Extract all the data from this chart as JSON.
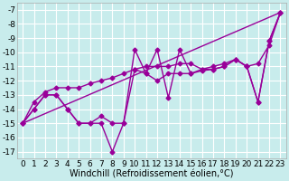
{
  "xlabel": "Windchill (Refroidissement éolien,°C)",
  "bg_color": "#c8ecec",
  "grid_color": "#ffffff",
  "line_color": "#990099",
  "xlim": [
    -0.5,
    23.5
  ],
  "ylim": [
    -17.5,
    -6.5
  ],
  "yticks": [
    -17,
    -16,
    -15,
    -14,
    -13,
    -12,
    -11,
    -10,
    -9,
    -8,
    -7
  ],
  "xticks": [
    0,
    1,
    2,
    3,
    4,
    5,
    6,
    7,
    8,
    9,
    10,
    11,
    12,
    13,
    14,
    15,
    16,
    17,
    18,
    19,
    20,
    21,
    22,
    23
  ],
  "series": [
    [
      0,
      -15,
      1,
      -14.0,
      2,
      -13.0,
      3,
      -13.0,
      4,
      -14.0,
      5,
      -15.0,
      6,
      -15.0,
      7,
      -15.0,
      8,
      -17.0,
      9,
      -15.0,
      10,
      -9.8,
      11,
      -11.5,
      12,
      -9.8,
      13,
      -13.2,
      14,
      -9.8,
      15,
      -11.5,
      16,
      -11.3,
      17,
      -11.2,
      18,
      -11.0,
      19,
      -10.5,
      20,
      -11.0,
      21,
      -13.5,
      22,
      -9.2,
      23,
      -7.2
    ],
    [
      0,
      -15,
      1,
      -14.0,
      2,
      -13.0,
      3,
      -13.0,
      4,
      -14.0,
      5,
      -15.0,
      6,
      -15.0,
      7,
      -14.5,
      8,
      -15.0,
      9,
      -15.0,
      10,
      -11.2,
      11,
      -11.5,
      12,
      -12.0,
      13,
      -11.5,
      14,
      -11.5,
      15,
      -11.5,
      16,
      -11.2,
      17,
      -11.2,
      18,
      -11.0,
      19,
      -10.5,
      20,
      -11.0,
      21,
      -13.5,
      22,
      -9.2,
      23,
      -7.2
    ],
    [
      0,
      -15,
      23,
      -7.2
    ],
    [
      0,
      -15,
      1,
      -13.5,
      2,
      -12.8,
      3,
      -12.5,
      4,
      -12.5,
      5,
      -12.5,
      6,
      -12.2,
      7,
      -12.0,
      8,
      -11.8,
      9,
      -11.5,
      10,
      -11.2,
      11,
      -11.0,
      12,
      -11.0,
      13,
      -11.0,
      14,
      -10.8,
      15,
      -10.8,
      16,
      -11.2,
      17,
      -11.0,
      18,
      -10.8,
      19,
      -10.5,
      20,
      -11.0,
      21,
      -10.8,
      22,
      -9.5,
      23,
      -7.2
    ]
  ],
  "marker": "D",
  "markersize": 2.5,
  "linewidth": 1.0,
  "xlabel_fontsize": 7,
  "tick_fontsize": 6.5
}
